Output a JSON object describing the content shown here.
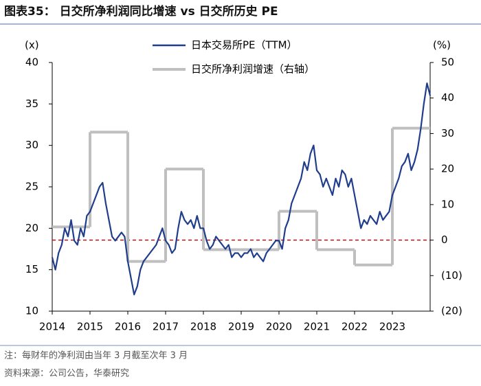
{
  "chart_data": {
    "type": "line",
    "title": "图表35：  日交所净利润同比增速 vs 日交所历史 PE",
    "y_unit_label": "(x)",
    "y2_unit_label": "(%)",
    "note": "注：每财年的净利润由当年 3 月截至次年 3 月",
    "source": "资料来源：公司公告，华泰研究",
    "xlim": [
      2014,
      2024
    ],
    "xticks": [
      2014,
      2015,
      2016,
      2017,
      2018,
      2019,
      2020,
      2021,
      2022,
      2023
    ],
    "ylim": [
      10,
      40
    ],
    "yticks": [
      10,
      15,
      20,
      25,
      30,
      35,
      40
    ],
    "y2lim": [
      -20,
      50
    ],
    "y2ticks": [
      {
        "value": -20,
        "label": "(20)"
      },
      {
        "value": -10,
        "label": "(10)"
      },
      0,
      10,
      20,
      30,
      40,
      50
    ],
    "reference_line": {
      "axis": "y2",
      "value": 0,
      "color": "#c00000",
      "style": "dashed"
    },
    "series": [
      {
        "name": "日本交易所PE（TTM）",
        "color": "#1f3d8c",
        "style": "line",
        "x": [
          2014,
          2014.083,
          2014.167,
          2014.25,
          2014.333,
          2014.417,
          2014.5,
          2014.583,
          2014.667,
          2014.75,
          2014.833,
          2014.917,
          2015,
          2015.083,
          2015.167,
          2015.25,
          2015.333,
          2015.417,
          2015.5,
          2015.583,
          2015.667,
          2015.75,
          2015.833,
          2015.917,
          2016,
          2016.083,
          2016.167,
          2016.25,
          2016.333,
          2016.417,
          2016.5,
          2016.583,
          2016.667,
          2016.75,
          2016.833,
          2016.917,
          2017,
          2017.083,
          2017.167,
          2017.25,
          2017.333,
          2017.417,
          2017.5,
          2017.583,
          2017.667,
          2017.75,
          2017.833,
          2017.917,
          2018,
          2018.083,
          2018.167,
          2018.25,
          2018.333,
          2018.417,
          2018.5,
          2018.583,
          2018.667,
          2018.75,
          2018.833,
          2018.917,
          2019,
          2019.083,
          2019.167,
          2019.25,
          2019.333,
          2019.417,
          2019.5,
          2019.583,
          2019.667,
          2019.75,
          2019.833,
          2019.917,
          2020,
          2020.083,
          2020.167,
          2020.25,
          2020.333,
          2020.417,
          2020.5,
          2020.583,
          2020.667,
          2020.75,
          2020.833,
          2020.917,
          2021,
          2021.083,
          2021.167,
          2021.25,
          2021.333,
          2021.417,
          2021.5,
          2021.583,
          2021.667,
          2021.75,
          2021.833,
          2021.917,
          2022,
          2022.083,
          2022.167,
          2022.25,
          2022.333,
          2022.417,
          2022.5,
          2022.583,
          2022.667,
          2022.75,
          2022.833,
          2022.917,
          2023,
          2023.083,
          2023.167,
          2023.25,
          2023.333,
          2023.417,
          2023.5,
          2023.583,
          2023.667,
          2023.75,
          2023.833,
          2023.917,
          2024
        ],
        "values": [
          16.5,
          15,
          17,
          18,
          20,
          19,
          21,
          18.5,
          18,
          20,
          19,
          21.5,
          22,
          23,
          24,
          25,
          25.5,
          23,
          21,
          19,
          18.5,
          19,
          19.5,
          19,
          16,
          14,
          12,
          13,
          15,
          16,
          16.5,
          17,
          17.5,
          18,
          19,
          20,
          18.5,
          18,
          17,
          17.5,
          20,
          22,
          21,
          20.5,
          21,
          20,
          21.5,
          20,
          20,
          18.5,
          17.5,
          18,
          19,
          18.5,
          18,
          17.5,
          18,
          16.5,
          17,
          17,
          16.5,
          17,
          17,
          17.5,
          16.5,
          17,
          16.5,
          16,
          17,
          17.5,
          18,
          18.5,
          18.5,
          17.5,
          20,
          21,
          23,
          24,
          25,
          26,
          28,
          27,
          29,
          30,
          27,
          26.5,
          25,
          26,
          25,
          24,
          26,
          25,
          27,
          26.5,
          25,
          26,
          24,
          22,
          20,
          21,
          20.5,
          21.5,
          21,
          20.5,
          22,
          21,
          21.5,
          22,
          24,
          25,
          26,
          27.5,
          28,
          29,
          27,
          28,
          29.5,
          32,
          35,
          37.5,
          36
        ]
      },
      {
        "name": "日交所净利润增速（右轴）",
        "color": "#bfbfbf",
        "style": "step",
        "axis": "y2",
        "x": [
          2014,
          2015,
          2016,
          2017,
          2018,
          2019,
          2020,
          2021,
          2022,
          2023
        ],
        "values": [
          3.7,
          30.4,
          -6,
          20,
          -2.7,
          -2.7,
          8.1,
          -2.7,
          -7,
          31.5
        ]
      }
    ]
  }
}
